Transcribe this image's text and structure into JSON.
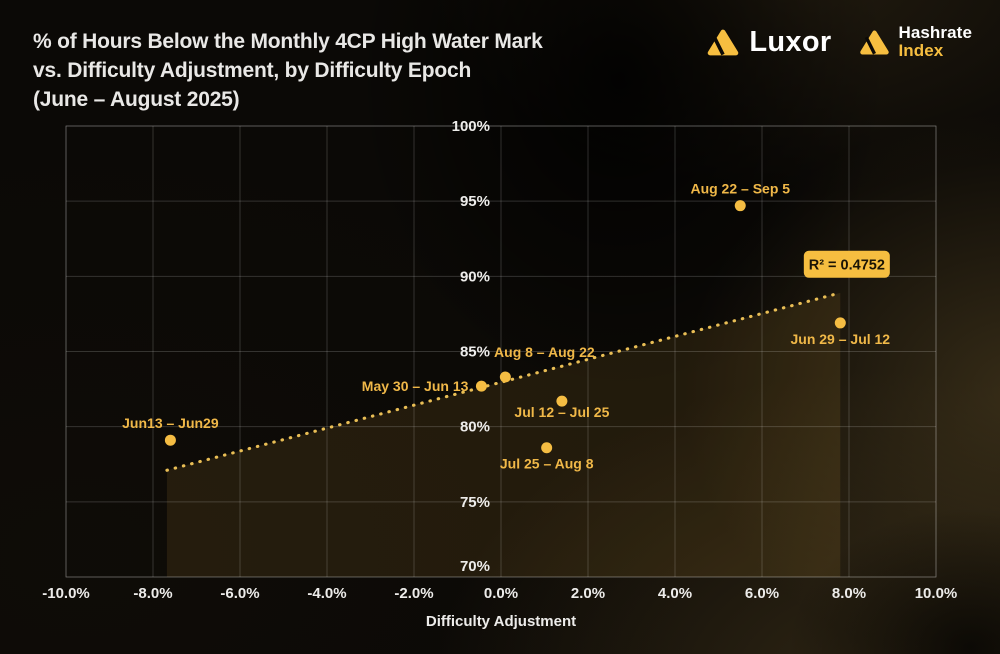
{
  "header": {
    "title_lines": [
      "% of Hours Below the Monthly 4CP High Water Mark",
      "vs. Difficulty Adjustment, by Difficulty Epoch",
      "(June – August 2025)"
    ],
    "brand": {
      "luxor": "Luxor",
      "hashrate_line1": "Hashrate",
      "hashrate_line2": "Index"
    }
  },
  "colors": {
    "background": "#0B0906",
    "title_text": "#E9E8E6",
    "accent": "#F6BE40",
    "point": "#F5BD43",
    "point_label": "#F0B848",
    "trendline": "#E9BE55",
    "area_fill": "rgba(246,190,64,0.10)",
    "grid": "rgba(255,255,255,0.17)",
    "axis_text": "#EDECEA",
    "r2_box_text": "#1A1405"
  },
  "chart_data": {
    "type": "scatter",
    "title": "% of Hours Below the Monthly 4CP High Water Mark vs. Difficulty Adjustment, by Difficulty Epoch (June – August 2025)",
    "xlabel": "Difficulty Adjustment",
    "ylabel": "",
    "xlim": [
      -10,
      10
    ],
    "ylim": [
      70,
      100
    ],
    "grid": true,
    "legend": null,
    "x_ticks": [
      {
        "value": -10,
        "label": "-10.0%"
      },
      {
        "value": -8,
        "label": "-8.0%"
      },
      {
        "value": -6,
        "label": "-6.0%"
      },
      {
        "value": -4,
        "label": "-4.0%"
      },
      {
        "value": -2,
        "label": "-2.0%"
      },
      {
        "value": 0,
        "label": "0.0%"
      },
      {
        "value": 2,
        "label": "2.0%"
      },
      {
        "value": 4,
        "label": "4.0%"
      },
      {
        "value": 6,
        "label": "6.0%"
      },
      {
        "value": 8,
        "label": "8.0%"
      },
      {
        "value": 10,
        "label": "10.0%"
      }
    ],
    "y_ticks": [
      {
        "value": 70,
        "label": "70%"
      },
      {
        "value": 75,
        "label": "75%"
      },
      {
        "value": 80,
        "label": "80%"
      },
      {
        "value": 85,
        "label": "85%"
      },
      {
        "value": 90,
        "label": "90%"
      },
      {
        "value": 95,
        "label": "95%"
      },
      {
        "value": 100,
        "label": "100%"
      }
    ],
    "points": [
      {
        "epoch": "Jun13 – Jun29",
        "x": -7.6,
        "y": 79.1,
        "label_position": "above"
      },
      {
        "epoch": "May 30 – Jun 13",
        "x": -0.45,
        "y": 82.7,
        "label_position": "left"
      },
      {
        "epoch": "Aug 8 – Aug 22",
        "x": 0.1,
        "y": 83.3,
        "label_position": "above",
        "label_dx": 39,
        "label_dy": -20
      },
      {
        "epoch": "Jul 12 – Jul 25",
        "x": 1.4,
        "y": 81.7,
        "label_position": "below",
        "label_dy": 16
      },
      {
        "epoch": "Jul 25 – Aug 8",
        "x": 1.05,
        "y": 78.6,
        "label_position": "below"
      },
      {
        "epoch": "Aug 22 – Sep 5",
        "x": 5.5,
        "y": 94.7,
        "label_position": "above"
      },
      {
        "epoch": "Jun 29 – Jul 12",
        "x": 7.8,
        "y": 86.9,
        "label_position": "below"
      }
    ],
    "trendline": {
      "style": "dotted",
      "x1": -7.68,
      "y1": 77.1,
      "x2": 7.8,
      "y2": 88.9,
      "r2": 0.4752,
      "r2_label": "R² = 0.4752",
      "r2_label_x": 7.95,
      "r2_label_y": 90.8
    },
    "area_fill_under_trendline": true
  }
}
